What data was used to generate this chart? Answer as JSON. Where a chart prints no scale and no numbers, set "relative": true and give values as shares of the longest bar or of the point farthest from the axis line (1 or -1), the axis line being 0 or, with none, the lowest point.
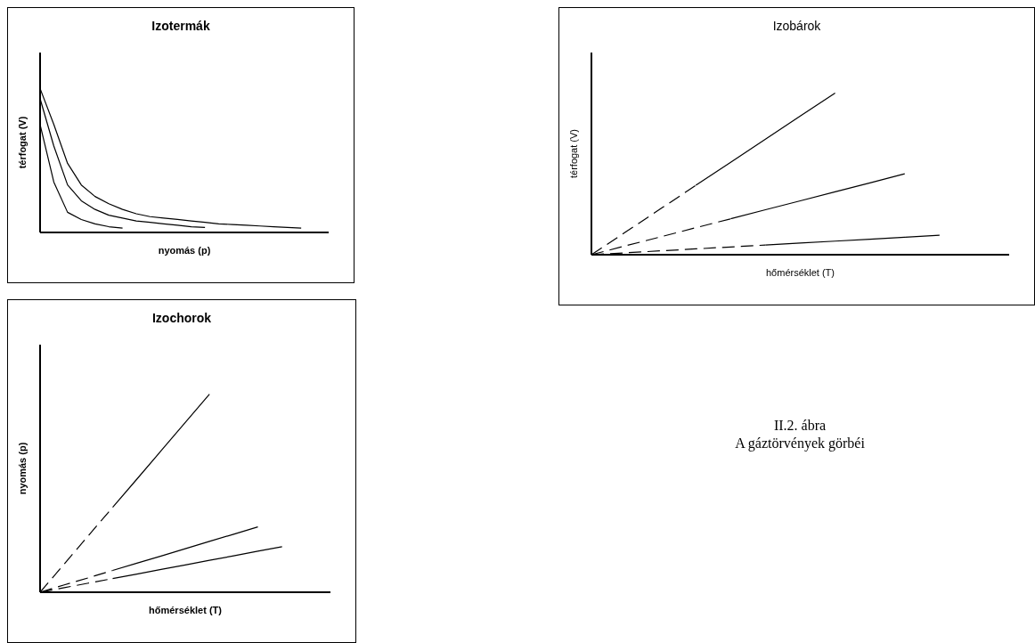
{
  "chart_data": [
    {
      "type": "line",
      "title": "Izotermák",
      "xlabel": "nyomás (p)",
      "ylabel": "térfogat (V)",
      "relative": true,
      "categories": [
        null,
        null,
        null,
        null,
        null,
        null,
        null,
        null,
        null,
        null,
        null,
        null,
        null,
        null,
        null,
        null,
        null,
        null,
        null,
        null,
        null
      ],
      "series": [
        {
          "color": "#000000",
          "values": [
            0.75,
            0.35,
            0.14,
            0.09,
            0.06,
            0.04,
            0.03,
            null,
            null,
            null,
            null,
            null,
            null,
            null,
            null,
            null,
            null,
            null,
            null,
            null,
            null
          ]
        },
        {
          "color": "#000000",
          "values": [
            0.93,
            0.6,
            0.33,
            0.22,
            0.16,
            0.12,
            0.1,
            0.08,
            0.07,
            0.06,
            0.05,
            0.04,
            0.035,
            null,
            null,
            null,
            null,
            null,
            null,
            null,
            null
          ]
        },
        {
          "color": "#000000",
          "values": [
            1,
            0.75,
            0.48,
            0.33,
            0.25,
            0.2,
            0.16,
            0.13,
            0.11,
            0.1,
            0.09,
            0.08,
            0.07,
            0.06,
            0.055,
            0.05,
            0.045,
            0.04,
            0.035,
            0.03,
            null
          ]
        }
      ]
    },
    {
      "type": "line",
      "title": "Izobárok",
      "xlabel": "hőmérséklet (T)",
      "ylabel": "térfogat (V)",
      "relative": true,
      "categories": [
        null,
        null,
        null,
        null,
        null,
        null,
        null,
        null,
        null,
        null,
        null,
        null
      ],
      "series": [
        {
          "color": "#000000",
          "line_style": "dashed",
          "values": [
            0,
            0.143,
            0.286,
            0.429,
            null,
            null,
            null,
            null,
            null,
            null,
            null,
            null
          ]
        },
        {
          "color": "#000000",
          "line_style": "solid",
          "values": [
            null,
            null,
            null,
            0.429,
            0.571,
            0.714,
            0.857,
            1,
            null,
            null,
            null,
            null
          ]
        },
        {
          "color": "#000000",
          "line_style": "dashed",
          "values": [
            0,
            0.056,
            0.111,
            0.167,
            0.222,
            null,
            null,
            null,
            null,
            null,
            null,
            null
          ]
        },
        {
          "color": "#000000",
          "line_style": "solid",
          "values": [
            null,
            null,
            null,
            null,
            0.222,
            0.278,
            0.333,
            0.389,
            0.444,
            0.5,
            null,
            null
          ]
        },
        {
          "color": "#000000",
          "line_style": "dashed",
          "values": [
            0,
            0.012,
            0.024,
            0.036,
            0.048,
            0.06,
            null,
            null,
            null,
            null,
            null,
            null
          ]
        },
        {
          "color": "#000000",
          "line_style": "solid",
          "values": [
            null,
            null,
            null,
            null,
            null,
            0.06,
            0.072,
            0.084,
            0.096,
            0.108,
            0.12,
            null
          ]
        }
      ]
    },
    {
      "type": "line",
      "title": "Izochorok",
      "xlabel": "hőmérséklet (T)",
      "ylabel": "nyomás (p)",
      "relative": true,
      "categories": [
        null,
        null,
        null,
        null,
        null,
        null,
        null,
        null,
        null,
        null,
        null,
        null
      ],
      "series": [
        {
          "color": "#000000",
          "line_style": "dashed",
          "values": [
            0,
            0.143,
            0.286,
            0.429,
            null,
            null,
            null,
            null,
            null,
            null,
            null,
            null
          ]
        },
        {
          "color": "#000000",
          "line_style": "solid",
          "values": [
            null,
            null,
            null,
            0.429,
            0.571,
            0.714,
            0.857,
            1,
            null,
            null,
            null,
            null
          ]
        },
        {
          "color": "#000000",
          "line_style": "dashed",
          "values": [
            0,
            0.037,
            0.073,
            0.11,
            null,
            null,
            null,
            null,
            null,
            null,
            null,
            null
          ]
        },
        {
          "color": "#000000",
          "line_style": "solid",
          "values": [
            null,
            null,
            null,
            0.11,
            0.147,
            0.183,
            0.22,
            0.257,
            0.293,
            0.33,
            null,
            null
          ]
        },
        {
          "color": "#000000",
          "line_style": "dashed",
          "values": [
            0,
            0.023,
            0.046,
            0.069,
            null,
            null,
            null,
            null,
            null,
            null,
            null,
            null
          ]
        },
        {
          "color": "#000000",
          "line_style": "solid",
          "values": [
            null,
            null,
            null,
            0.069,
            0.092,
            0.115,
            0.138,
            0.161,
            0.184,
            0.207,
            0.23,
            null
          ]
        }
      ]
    },
    {
      "type": "other",
      "annotations": [
        "II.2. ábra",
        "A gáztörvények görbéi"
      ]
    }
  ]
}
